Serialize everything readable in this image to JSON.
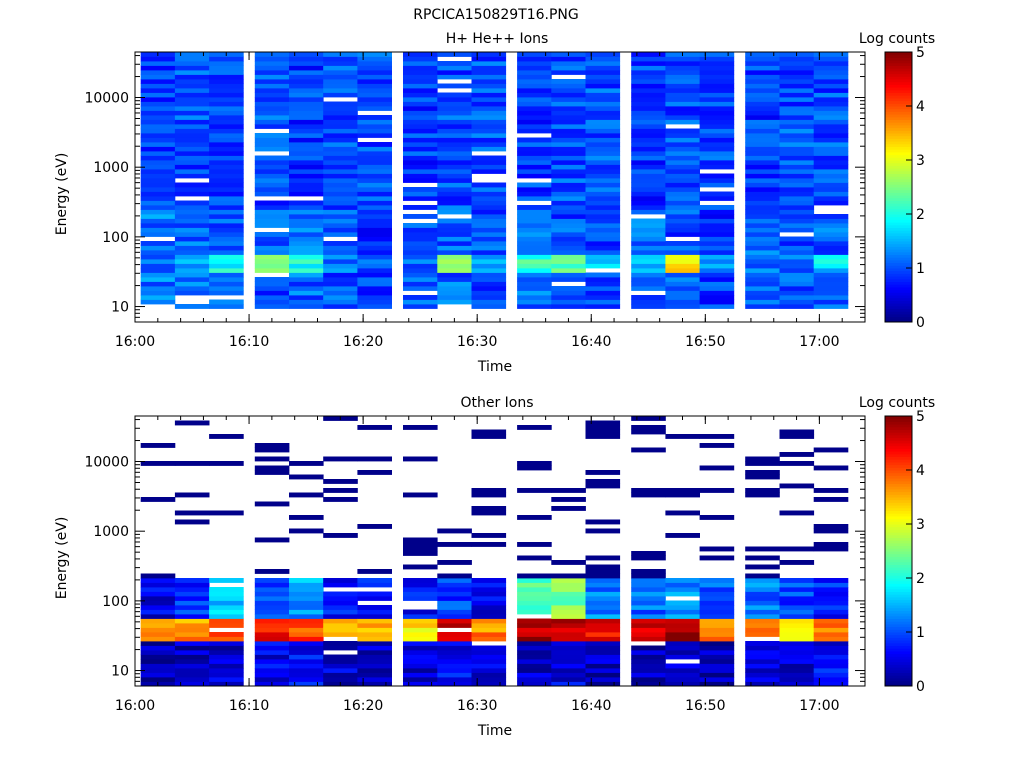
{
  "figure": {
    "title": "RPCICA150829T16.PNG"
  },
  "chart_data": [
    {
      "type": "heatmap",
      "title": "H+ He++ Ions",
      "xlabel": "Time",
      "ylabel": "Energy (eV)",
      "x_ticks": [
        "16:00",
        "16:10",
        "16:20",
        "16:30",
        "16:40",
        "16:50",
        "17:00"
      ],
      "xlim": [
        "16:00",
        "17:04"
      ],
      "y_scale": "log",
      "ylim": [
        6,
        45000
      ],
      "y_ticks": [
        "10",
        "100",
        "1000",
        "10000"
      ],
      "colorbar": {
        "label": "Log counts",
        "range": [
          0,
          5
        ],
        "ticks": [
          "0",
          "1",
          "2",
          "3",
          "4",
          "5"
        ]
      },
      "time_bins": [
        "16:02",
        "16:05",
        "16:08",
        "16:12",
        "16:15",
        "16:18",
        "16:21",
        "16:25",
        "16:28",
        "16:31",
        "16:35",
        "16:38",
        "16:41",
        "16:45",
        "16:48",
        "16:51",
        "16:55",
        "16:58",
        "17:01"
      ],
      "bands": [
        {
          "energy_range": [
            10,
            250
          ],
          "values": [
            1.2,
            1.1,
            1.0,
            1.0,
            1.1,
            1.0,
            0.9,
            1.0,
            1.1,
            1.0,
            1.1,
            1.0,
            1.0,
            1.1,
            1.0,
            0.9,
            1.1,
            1.0,
            1.1
          ]
        },
        {
          "energy_range": [
            30,
            60
          ],
          "values": [
            1.0,
            1.3,
            1.9,
            2.4,
            2.0,
            1.2,
            1.1,
            1.2,
            2.6,
            1.5,
            2.2,
            2.3,
            1.8,
            1.6,
            3.1,
            1.4,
            1.2,
            1.1,
            1.7
          ]
        },
        {
          "energy_range": [
            250,
            45000
          ],
          "values": [
            0.9,
            1.0,
            0.9,
            1.0,
            0.9,
            1.0,
            1.0,
            0.9,
            1.0,
            1.0,
            0.9,
            1.0,
            1.0,
            0.9,
            1.0,
            1.0,
            0.9,
            1.0,
            1.0
          ]
        }
      ]
    },
    {
      "type": "heatmap",
      "title": "Other Ions",
      "xlabel": "Time",
      "ylabel": "Energy (eV)",
      "x_ticks": [
        "16:00",
        "16:10",
        "16:20",
        "16:30",
        "16:40",
        "16:50",
        "17:00"
      ],
      "xlim": [
        "16:00",
        "17:04"
      ],
      "y_scale": "log",
      "ylim": [
        6,
        45000
      ],
      "y_ticks": [
        "10",
        "100",
        "1000",
        "10000"
      ],
      "colorbar": {
        "label": "Log counts",
        "range": [
          0,
          5
        ],
        "ticks": [
          "0",
          "1",
          "2",
          "3",
          "4",
          "5"
        ]
      },
      "time_bins": [
        "16:02",
        "16:05",
        "16:08",
        "16:12",
        "16:15",
        "16:18",
        "16:21",
        "16:25",
        "16:28",
        "16:31",
        "16:35",
        "16:38",
        "16:41",
        "16:45",
        "16:48",
        "16:51",
        "16:55",
        "16:58",
        "17:01"
      ],
      "bands": [
        {
          "energy_range": [
            6,
            25
          ],
          "values": [
            0.2,
            0.3,
            0.4,
            0.5,
            0.6,
            0.4,
            0.3,
            0.4,
            0.6,
            0.4,
            0.4,
            0.5,
            0.3,
            0.3,
            0.5,
            0.3,
            0.4,
            0.4,
            0.6
          ]
        },
        {
          "energy_range": [
            25,
            60
          ],
          "values": [
            3.5,
            3.6,
            3.9,
            4.4,
            4.1,
            3.3,
            3.5,
            3.2,
            4.7,
            3.7,
            4.8,
            4.7,
            4.4,
            4.5,
            4.8,
            3.8,
            3.6,
            3.4,
            3.8
          ]
        },
        {
          "energy_range": [
            60,
            200
          ],
          "values": [
            0.5,
            0.8,
            1.5,
            0.9,
            1.4,
            0.7,
            0.6,
            0.6,
            0.9,
            0.6,
            2.2,
            2.5,
            1.3,
            1.1,
            1.4,
            1.0,
            1.2,
            0.9,
            0.8
          ]
        },
        {
          "energy_range": [
            200,
            45000
          ],
          "values": [
            0.05,
            0.05,
            0.05,
            0.05,
            0.05,
            0.05,
            0.05,
            0.05,
            0.05,
            0.05,
            0.05,
            0.05,
            0.05,
            0.05,
            0.05,
            0.05,
            0.05,
            0.05,
            0.05
          ]
        }
      ]
    }
  ]
}
